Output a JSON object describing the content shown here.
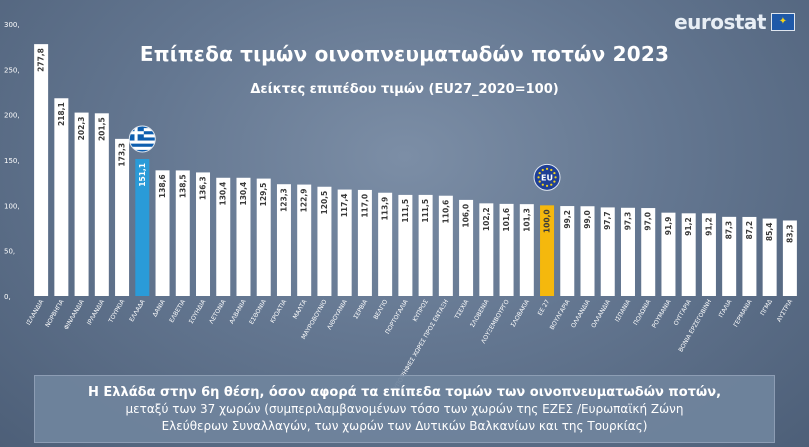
{
  "header": {
    "title": "Επίπεδα τιμών οινοπνευματωδών ποτών 2023",
    "subtitle": "Δείκτες επιπέδου τιμών (EU27_2020=100)",
    "logo_text": "eurostat"
  },
  "caption": {
    "line1": "Η Ελλάδα στην 6η θέση, όσον αφορά τα επίπεδα τομών των οινοπνευματωδών ποτών,",
    "line2": "μεταξύ των 37 χωρών (συμπεριλαμβανομένων τόσο των χωρών της ΕΖΕΣ /Ευρωπαϊκή Ζώνη",
    "line3": "Ελεύθερων Συναλλαγών, των χωρών των Δυτικών Βαλκανίων και της Τουρκίας)"
  },
  "colors": {
    "bar": "#ffffff",
    "greece": "#2a9bd8",
    "eu": "#f5b80d",
    "axis_text": "#ffffff",
    "label_text": "#3a3a3a"
  },
  "icons": {
    "greece_marker": "greece-flag-icon",
    "eu_marker": "eu-flag-icon"
  },
  "chart_data": {
    "type": "bar",
    "title": "Επίπεδα τιμών οινοπνευματωδών ποτών 2023",
    "subtitle": "Δείκτες επιπέδου τιμών (EU27_2020=100)",
    "ylim": [
      0,
      300
    ],
    "yticks": [
      "0,",
      "50,",
      "100,",
      "150,",
      "200,",
      "250,",
      "300,"
    ],
    "grid": false,
    "categories": [
      "ΙΣΛΑΝΔΙΑ",
      "ΝΟΡΒΗΓΙΑ",
      "ΦΙΝΛΑΝΔΙΑ",
      "ΙΡΛΑΝΔΙΑ",
      "ΤΟΥΡΚΙΑ",
      "ΕΛΛΑΔΑ",
      "ΔΑΝΙΑ",
      "ΕΛΒΕΤΙΑ",
      "ΣΟΥΗΔΙΑ",
      "ΛΕΤΟΝΙΑ",
      "ΑΛΒΑΝΙΑ",
      "ΕΣΘΟΝΙΑ",
      "ΚΡΟΑΤΙΑ",
      "ΜΑΛΤΑ",
      "ΜΑΥΡΟΒΟΥΝΙΟ",
      "ΛΙΘΟΥΑΝΙΑ",
      "ΣΕΡΒΙΑ",
      "ΒΕΛΓΙΟ",
      "ΠΟΡΤΟΓΑΛΙΑ",
      "ΚΥΠΡΟΣ",
      "ΥΠΟΨΗΦΙΕΣ ΧΩΡΕΣ ΠΡΟΣ ΕΝΤΑΞΗ",
      "ΤΣΕΧΙΑ",
      "ΣΛΟΒΕΝΙΑ",
      "ΛΟΥΞΕΜΒΟΥΡΓΟ",
      "ΣΛΟΒΑΚΙΑ",
      "ΕΕ 27",
      "ΒΟΥΛΓΑΡΙΑ",
      "ΟΛΛΑΝΔΙΑ",
      "ΟΛΛΑΝΔΙΑ",
      "ΙΣΠΑΝΙΑ",
      "ΠΟΛΩΝΙΑ",
      "ΡΟΥΜΑΝΙΑ",
      "ΟΥΓΓΑΡΙΑ",
      "ΒΟΝΙΑ ΕΡΖΕΓΟΒΙΝΗ",
      "ΙΤΑΛΙΑ",
      "ΓΕΡΜΑΝΙΑ",
      "ΠΓΜΔ",
      "ΑΥΣΤΡΙΑ"
    ],
    "values": [
      277.8,
      218.1,
      202.3,
      201.5,
      173.3,
      151.1,
      138.6,
      138.5,
      136.3,
      130.4,
      130.4,
      129.5,
      123.3,
      122.9,
      120.5,
      117.4,
      117.0,
      113.9,
      111.5,
      111.5,
      110.6,
      106.0,
      102.2,
      101.6,
      101.3,
      100.0,
      99.2,
      99.0,
      97.7,
      97.3,
      97.0,
      91.9,
      91.2,
      91.2,
      87.3,
      87.2,
      85.4,
      83.3
    ],
    "value_labels": [
      "277,8",
      "218,1",
      "202,3",
      "201,5",
      "173,3",
      "151,1",
      "138,6",
      "138,5",
      "136,3",
      "130,4",
      "130,4",
      "129,5",
      "123,3",
      "122,9",
      "120,5",
      "117,4",
      "117,0",
      "113,9",
      "111,5",
      "111,5",
      "110,6",
      "106,0",
      "102,2",
      "101,6",
      "101,3",
      "100,0",
      "99,2",
      "99,0",
      "97,7",
      "97,3",
      "97,0",
      "91,9",
      "91,2",
      "91,2",
      "87,3",
      "87,2",
      "85,4",
      "83,3"
    ],
    "highlight": {
      "ΕΛΛΑΔΑ": "greece",
      "ΕΕ 27": "eu"
    }
  }
}
